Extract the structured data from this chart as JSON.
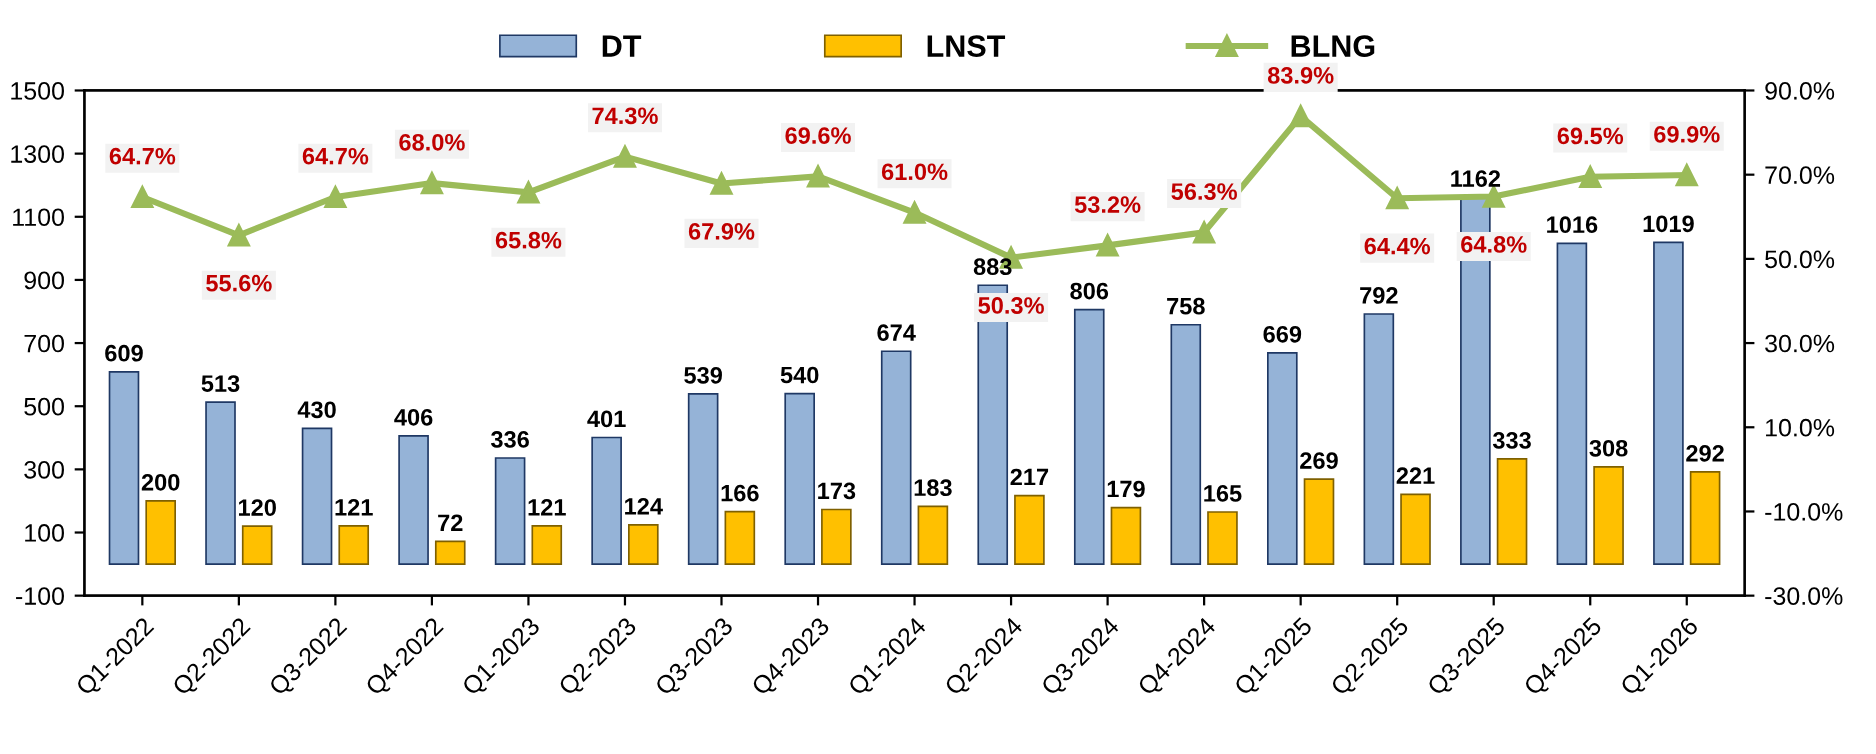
{
  "chart_data": {
    "type": "bar",
    "categories": [
      "Q1-2022",
      "Q2-2022",
      "Q3-2022",
      "Q4-2022",
      "Q1-2023",
      "Q2-2023",
      "Q3-2023",
      "Q4-2023",
      "Q1-2024",
      "Q2-2024",
      "Q3-2024",
      "Q4-2024",
      "Q1-2025",
      "Q2-2025",
      "Q3-2025",
      "Q4-2025",
      "Q1-2026"
    ],
    "series": [
      {
        "name": "DT",
        "color": "#95b3d7",
        "values": [
          609,
          513,
          430,
          406,
          336,
          401,
          539,
          540,
          674,
          883,
          806,
          758,
          669,
          792,
          1162,
          1016,
          1019
        ],
        "value_labels": [
          "609",
          "513",
          "430",
          "406",
          "336",
          "401",
          "539",
          "540",
          "674",
          "883",
          "806",
          "758",
          "669",
          "792",
          "1162",
          "1016",
          "1019"
        ]
      },
      {
        "name": "LNST",
        "color": "#ffc000",
        "values": [
          200,
          120,
          121,
          72,
          121,
          124,
          166,
          173,
          183,
          217,
          179,
          165,
          269,
          221,
          333,
          308,
          292
        ],
        "value_labels": [
          "200",
          "120",
          "121",
          "72",
          "121",
          "124",
          "166",
          "173",
          "183",
          "217",
          "179",
          "165",
          "269",
          "221",
          "333",
          "308",
          "292"
        ]
      },
      {
        "name": "BLNG",
        "type": "line",
        "axis": "y2",
        "color": "#9bbb59",
        "values": [
          64.7,
          55.6,
          64.7,
          68.0,
          65.8,
          74.3,
          67.9,
          69.6,
          61.0,
          50.3,
          53.2,
          56.3,
          83.9,
          64.4,
          64.8,
          69.5,
          69.9
        ],
        "value_labels": [
          "64.7%",
          "55.6%",
          "64.7%",
          "68.0%",
          "65.8%",
          "74.3%",
          "67.9%",
          "69.6%",
          "61.0%",
          "50.3%",
          "53.2%",
          "56.3%",
          "83.9%",
          "64.4%",
          "64.8%",
          "69.5%",
          "69.9%"
        ]
      }
    ],
    "ylim": [
      -100,
      1500
    ],
    "yticks": [
      -100,
      100,
      300,
      500,
      700,
      900,
      1100,
      1300,
      1500
    ],
    "y2lim": [
      -30,
      90
    ],
    "y2ticks": [
      {
        "value": -30,
        "label": "-30.0%"
      },
      {
        "value": -10,
        "label": "-10.0%"
      },
      {
        "value": 10,
        "label": "10.0%"
      },
      {
        "value": 30,
        "label": "30.0%"
      },
      {
        "value": 50,
        "label": "50.0%"
      },
      {
        "value": 70,
        "label": "70.0%"
      },
      {
        "value": 90,
        "label": "90.0%"
      }
    ],
    "marker": "triangle",
    "grid": false,
    "legend": "top"
  }
}
